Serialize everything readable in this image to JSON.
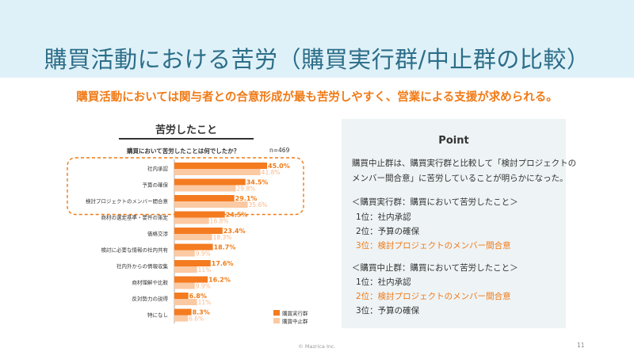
{
  "header": {
    "title": "購買活動における苦労（購買実行群/中止群の比較）",
    "subtitle": "購買活動においては関与者との合意形成が最も苦労しやすく、営業による支援が求められる。"
  },
  "chart_data": {
    "type": "bar",
    "orientation": "horizontal",
    "title": "苦労したこと",
    "question": "購買において苦労したことは何でしたか？",
    "n_label": "n=469",
    "categories": [
      "社内承認",
      "予算の確保",
      "検討プロジェクトのメンバー間合意",
      "商材の選定基準・要件の策定",
      "価格交渉",
      "検討に必要な情報の社内共有",
      "社内外からの情報収集",
      "商材理解や比較",
      "反対勢力の説得",
      "特になし"
    ],
    "series": [
      {
        "name": "購買実行群",
        "values": [
          45.0,
          34.5,
          29.1,
          24.5,
          23.4,
          18.7,
          17.6,
          16.2,
          6.8,
          8.3
        ],
        "labels": [
          "45.0%",
          "34.5%",
          "29.1%",
          "24.5%",
          "23.4%",
          "18.7%",
          "17.6%",
          "16.2%",
          "6.8%",
          "8.3%"
        ],
        "color": "#f47b20"
      },
      {
        "name": "購買中止群",
        "values": [
          41.8,
          29.8,
          35.6,
          16.8,
          18.3,
          9.9,
          11.0,
          9.9,
          11.0,
          6.6
        ],
        "labels": [
          "41.8%",
          "29.8%",
          "35.6%",
          "16.8%",
          "18.3%",
          "9.9%",
          "11%",
          "9.9%",
          "11%",
          "6.6%"
        ],
        "color": "#fbc9a2"
      }
    ],
    "xlim": [
      0,
      50
    ],
    "highlight_group": [
      "社内承認",
      "予算の確保",
      "検討プロジェクトのメンバー間合意"
    ],
    "label_color_primary": "#f07a15",
    "label_color_secondary": "#f9b98a"
  },
  "point": {
    "title": "Point",
    "lines": [
      "購買中止群は、購買実行群と比較して「検討プロジェクトの",
      "メンバー間合意」に苦労していることが明らかになった。",
      "＜購買実行群：購買において苦労したこと＞",
      "1位：社内承認",
      "2位：予算の確保",
      "3位：検討プロジェクトのメンバー間合意",
      "＜購買中止群：購買において苦労したこと＞",
      "1位：社内承認",
      "2位：検討プロジェクトのメンバー間合意",
      "3位：予算の確保"
    ]
  },
  "footer": {
    "copyright": "© Mazrica Inc.",
    "page_number": "11"
  },
  "colors": {
    "header_bg": "#dff1f8",
    "title": "#2c6e89",
    "accent": "#f07a15",
    "point_bg": "#eef3f5"
  }
}
